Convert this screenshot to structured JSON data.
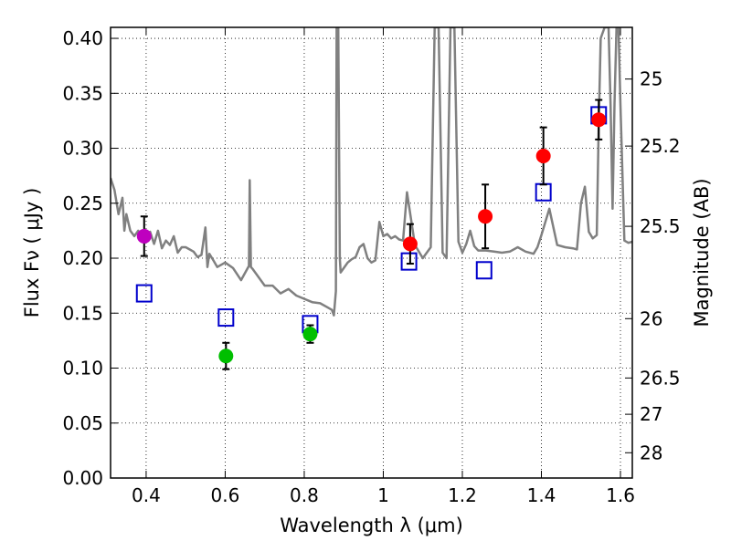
{
  "chart_data": {
    "type": "scatter",
    "title": "",
    "xlabel": "Wavelength  λ (μm)",
    "ylabel": "Flux  Fν  ( μJy )",
    "y2label": "Magnitude (AB)",
    "xlim": [
      0.31,
      1.63
    ],
    "ylim": [
      0.0,
      0.41
    ],
    "x_ticks": [
      0.4,
      0.6,
      0.8,
      1.0,
      1.2,
      1.4,
      1.6
    ],
    "x_tick_labels": [
      "0.4",
      "0.6",
      "0.8",
      "1",
      "1.2",
      "1.4",
      "1.6"
    ],
    "y_ticks": [
      0.0,
      0.05,
      0.1,
      0.15,
      0.2,
      0.25,
      0.3,
      0.35,
      0.4
    ],
    "y_tick_labels": [
      "0.00",
      "0.05",
      "0.10",
      "0.15",
      "0.20",
      "0.25",
      "0.30",
      "0.35",
      "0.40"
    ],
    "y2_ticks": [
      {
        "label": "25",
        "flux": 0.363
      },
      {
        "label": "25.2",
        "flux": 0.302
      },
      {
        "label": "25.5",
        "flux": 0.229
      },
      {
        "label": "26",
        "flux": 0.145
      },
      {
        "label": "26.5",
        "flux": 0.091
      },
      {
        "label": "27",
        "flux": 0.058
      },
      {
        "label": "28",
        "flux": 0.023
      }
    ],
    "grid": true,
    "grid_style": "dotted",
    "series": [
      {
        "style": "line",
        "color": "#808080",
        "x": [
          0.31,
          0.32,
          0.33,
          0.34,
          0.345,
          0.35,
          0.36,
          0.37,
          0.38,
          0.39,
          0.4,
          0.41,
          0.42,
          0.43,
          0.44,
          0.45,
          0.46,
          0.47,
          0.48,
          0.49,
          0.5,
          0.51,
          0.52,
          0.53,
          0.54,
          0.55,
          0.555,
          0.56,
          0.57,
          0.58,
          0.6,
          0.62,
          0.64,
          0.66,
          0.662,
          0.665,
          0.67,
          0.7,
          0.72,
          0.74,
          0.76,
          0.78,
          0.8,
          0.82,
          0.84,
          0.86,
          0.87,
          0.875,
          0.88,
          0.882,
          0.886,
          0.89,
          0.892,
          0.9,
          0.91,
          0.92,
          0.93,
          0.94,
          0.95,
          0.96,
          0.97,
          0.98,
          0.99,
          1.0,
          1.01,
          1.02,
          1.03,
          1.04,
          1.05,
          1.06,
          1.08,
          1.1,
          1.12,
          1.13,
          1.14,
          1.15,
          1.16,
          1.17,
          1.18,
          1.19,
          1.2,
          1.21,
          1.22,
          1.23,
          1.24,
          1.26,
          1.28,
          1.3,
          1.32,
          1.34,
          1.36,
          1.38,
          1.39,
          1.4,
          1.42,
          1.44,
          1.46,
          1.48,
          1.49,
          1.5,
          1.51,
          1.52,
          1.53,
          1.54,
          1.545,
          1.55,
          1.56,
          1.57,
          1.575,
          1.58,
          1.585,
          1.59,
          1.595,
          1.6,
          1.61,
          1.62,
          1.63
        ],
        "y": [
          0.273,
          0.262,
          0.24,
          0.255,
          0.225,
          0.24,
          0.225,
          0.22,
          0.225,
          0.218,
          0.222,
          0.224,
          0.213,
          0.225,
          0.209,
          0.216,
          0.212,
          0.22,
          0.205,
          0.21,
          0.21,
          0.208,
          0.206,
          0.201,
          0.203,
          0.228,
          0.192,
          0.204,
          0.198,
          0.192,
          0.196,
          0.191,
          0.18,
          0.193,
          0.271,
          0.192,
          0.19,
          0.175,
          0.175,
          0.168,
          0.172,
          0.166,
          0.163,
          0.16,
          0.159,
          0.155,
          0.153,
          0.148,
          0.17,
          0.41,
          0.41,
          0.2,
          0.187,
          0.191,
          0.196,
          0.199,
          0.201,
          0.21,
          0.213,
          0.2,
          0.196,
          0.198,
          0.233,
          0.22,
          0.222,
          0.218,
          0.22,
          0.217,
          0.216,
          0.26,
          0.212,
          0.2,
          0.21,
          0.41,
          0.41,
          0.205,
          0.2,
          0.41,
          0.41,
          0.215,
          0.205,
          0.213,
          0.225,
          0.211,
          0.207,
          0.207,
          0.206,
          0.205,
          0.206,
          0.21,
          0.206,
          0.204,
          0.21,
          0.221,
          0.245,
          0.212,
          0.21,
          0.209,
          0.208,
          0.25,
          0.265,
          0.224,
          0.218,
          0.221,
          0.32,
          0.4,
          0.41,
          0.41,
          0.34,
          0.245,
          0.34,
          0.41,
          0.41,
          0.34,
          0.216,
          0.214,
          0.215
        ]
      },
      {
        "style": "open-square",
        "color": "#0000cc",
        "x": [
          0.395,
          0.602,
          0.815,
          1.065,
          1.255,
          1.405,
          1.545
        ],
        "y": [
          0.168,
          0.146,
          0.14,
          0.197,
          0.189,
          0.26,
          0.33
        ]
      },
      {
        "style": "filled-circle",
        "color": "#bf00bf",
        "x": [
          0.395
        ],
        "y": [
          0.22
        ],
        "err": [
          0.018
        ]
      },
      {
        "style": "filled-circle",
        "color": "#00bf00",
        "x": [
          0.602,
          0.815
        ],
        "y": [
          0.111,
          0.131
        ],
        "err": [
          0.012,
          0.008
        ]
      },
      {
        "style": "filled-circle",
        "color": "#ff0000",
        "x": [
          1.068,
          1.258,
          1.405,
          1.545
        ],
        "y": [
          0.213,
          0.238,
          0.293,
          0.326
        ],
        "err": [
          0.018,
          0.029,
          0.026,
          0.018
        ]
      }
    ]
  }
}
